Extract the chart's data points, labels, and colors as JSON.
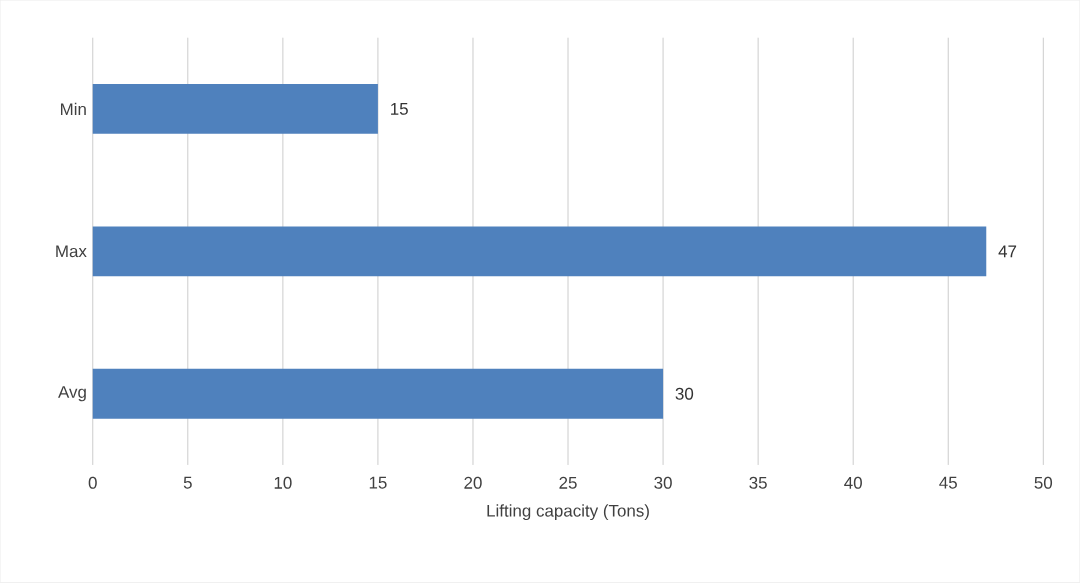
{
  "chart_data": {
    "type": "bar",
    "orientation": "horizontal",
    "categories": [
      "Min",
      "Max",
      "Avg"
    ],
    "values": [
      15,
      47,
      30
    ],
    "color": "#4f81bd",
    "xlim": [
      0,
      50
    ],
    "xticks": [
      0,
      5,
      10,
      15,
      20,
      25,
      30,
      35,
      40,
      45,
      50
    ],
    "grid": "x",
    "data_labels": true,
    "xlabel": "Lifting capacity (Tons)"
  }
}
